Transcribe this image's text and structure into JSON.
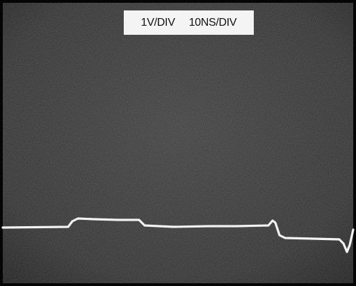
{
  "label": {
    "volts_per_div": "1V/DIV",
    "time_per_div": "10NS/DIV"
  }
}
